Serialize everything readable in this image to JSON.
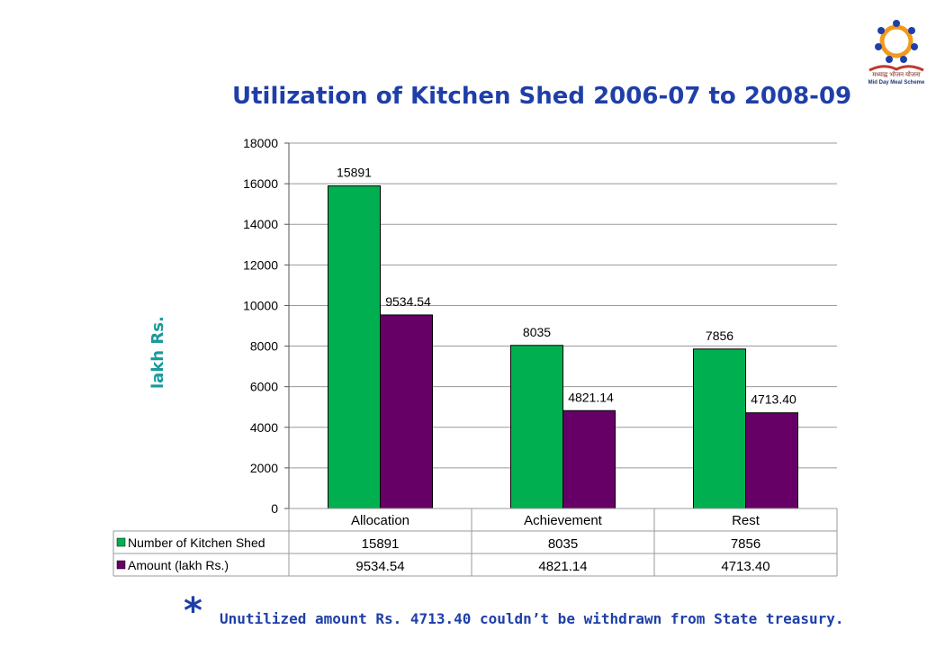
{
  "slide": {
    "title": "Utilization of Kitchen Shed 2006-07 to 2008-09",
    "ylabel": "lakh Rs.",
    "footnote_star": "*",
    "footnote": "Unutilized amount Rs. 4713.40 couldn’t be withdrawn from State treasury.",
    "logo": {
      "caption_line1": "मध्याह्न भोजन योजना",
      "caption_line2": "Mid Day Meal Scheme"
    }
  },
  "chart_data": {
    "type": "bar",
    "categories": [
      "Allocation",
      "Achievement",
      "Rest"
    ],
    "series": [
      {
        "name": "Number of Kitchen Shed",
        "color": "#00b050",
        "values": [
          15891,
          8035,
          7856
        ],
        "labels": [
          "15891",
          "8035",
          "7856"
        ]
      },
      {
        "name": "Amount (lakh Rs.)",
        "color": "#660066",
        "values": [
          9534.54,
          4821.14,
          4713.4
        ],
        "labels": [
          "9534.54",
          "4821.14",
          "4713.40"
        ]
      }
    ],
    "ylim": [
      0,
      18000
    ],
    "yticks": [
      "0",
      "2000",
      "4000",
      "6000",
      "8000",
      "10000",
      "12000",
      "14000",
      "16000",
      "18000"
    ],
    "grid": true,
    "data_table": true
  }
}
